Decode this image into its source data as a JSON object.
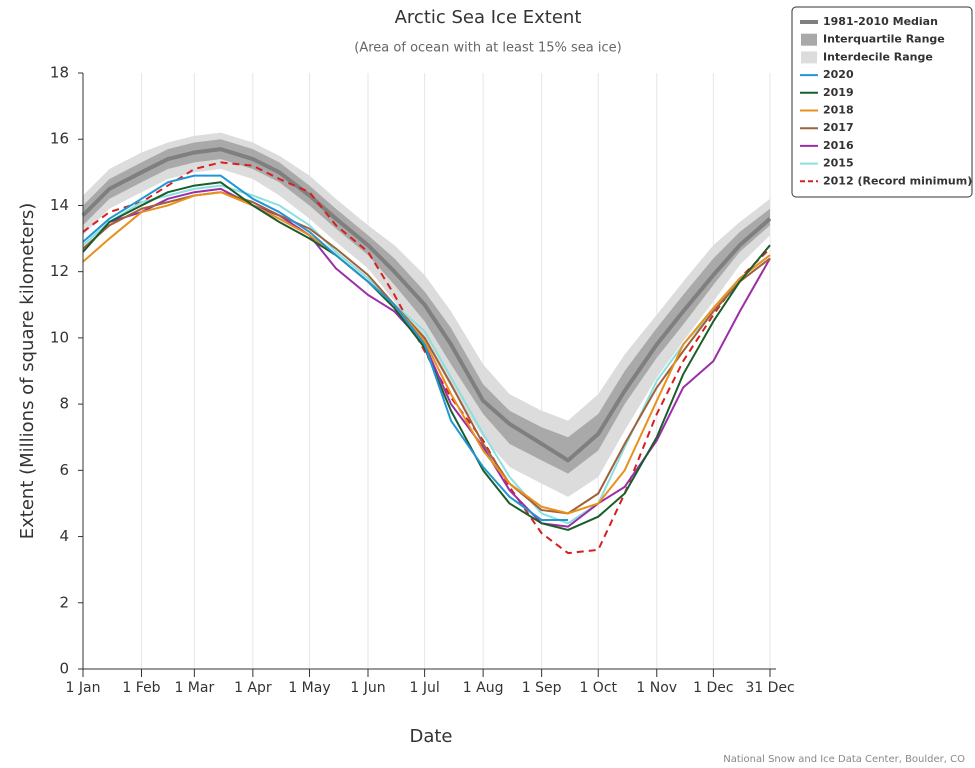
{
  "chart_data": {
    "type": "line",
    "title": "Arctic Sea Ice Extent",
    "subtitle": "(Area of ocean with at least 15% sea ice)",
    "y_label": "Extent (Millions of square kilometers)",
    "x_label": "Date",
    "credit": "National Snow and Ice Data Center, Boulder, CO",
    "xlim": [
      1,
      365
    ],
    "ylim": [
      0,
      18
    ],
    "xticks": [
      {
        "value": 1,
        "label": "1 Jan"
      },
      {
        "value": 32,
        "label": "1 Feb"
      },
      {
        "value": 60,
        "label": "1 Mar"
      },
      {
        "value": 91,
        "label": "1 Apr"
      },
      {
        "value": 121,
        "label": "1 May"
      },
      {
        "value": 152,
        "label": "1 Jun"
      },
      {
        "value": 182,
        "label": "1 Jul"
      },
      {
        "value": 213,
        "label": "1 Aug"
      },
      {
        "value": 244,
        "label": "1 Sep"
      },
      {
        "value": 274,
        "label": "1 Oct"
      },
      {
        "value": 305,
        "label": "1 Nov"
      },
      {
        "value": 335,
        "label": "1 Dec"
      },
      {
        "value": 365,
        "label": "31 Dec"
      }
    ],
    "yticks": [
      0,
      2,
      4,
      6,
      8,
      10,
      12,
      14,
      16,
      18
    ],
    "grid": "x",
    "x": [
      1,
      15,
      32,
      46,
      60,
      74,
      91,
      105,
      121,
      135,
      152,
      166,
      182,
      196,
      213,
      227,
      244,
      258,
      274,
      288,
      305,
      319,
      335,
      349,
      365
    ],
    "ranges": [
      {
        "name": "Interquartile Range",
        "color": "#a9a9a9",
        "low": [
          13.4,
          14.2,
          14.7,
          15.1,
          15.3,
          15.4,
          15.1,
          14.7,
          14.0,
          13.3,
          12.5,
          11.6,
          10.5,
          9.2,
          7.7,
          6.8,
          6.3,
          5.9,
          6.6,
          8.0,
          9.4,
          10.4,
          11.6,
          12.6,
          13.4
        ],
        "high": [
          14.0,
          14.8,
          15.3,
          15.7,
          15.9,
          16.0,
          15.7,
          15.3,
          14.6,
          13.9,
          13.1,
          12.4,
          11.4,
          10.3,
          8.6,
          7.8,
          7.3,
          7.0,
          7.7,
          9.0,
          10.3,
          11.3,
          12.4,
          13.2,
          13.9
        ]
      },
      {
        "name": "Interdecile Range",
        "color": "#dcdcdc",
        "low": [
          13.1,
          13.9,
          14.4,
          14.8,
          15.0,
          15.1,
          14.8,
          14.3,
          13.6,
          12.9,
          12.1,
          11.1,
          9.9,
          8.5,
          7.0,
          6.1,
          5.6,
          5.2,
          5.8,
          7.2,
          8.8,
          9.9,
          11.1,
          12.2,
          13.1
        ],
        "high": [
          14.3,
          15.1,
          15.6,
          15.9,
          16.1,
          16.2,
          15.9,
          15.5,
          14.9,
          14.2,
          13.4,
          12.8,
          11.9,
          10.8,
          9.2,
          8.3,
          7.8,
          7.5,
          8.3,
          9.5,
          10.7,
          11.7,
          12.8,
          13.5,
          14.2
        ]
      }
    ],
    "series": [
      {
        "name": "1981-2010 Median",
        "color": "#7f7f7f",
        "values": [
          13.7,
          14.5,
          15.0,
          15.4,
          15.6,
          15.7,
          15.4,
          15.0,
          14.3,
          13.6,
          12.8,
          12.0,
          11.0,
          9.8,
          8.1,
          7.4,
          6.8,
          6.3,
          7.1,
          8.4,
          9.8,
          10.8,
          11.9,
          12.8,
          13.6
        ]
      },
      {
        "name": "2020",
        "color": "#2196d6",
        "values": [
          12.9,
          13.6,
          14.2,
          14.7,
          14.9,
          14.9,
          14.2,
          13.8,
          13.2,
          12.5,
          11.7,
          11.0,
          9.8,
          7.5,
          6.1,
          5.2,
          4.5,
          4.5,
          null,
          null,
          null,
          null,
          null,
          null,
          null
        ]
      },
      {
        "name": "2019",
        "color": "#1b5e2b",
        "values": [
          12.6,
          13.5,
          14.0,
          14.4,
          14.6,
          14.7,
          14.0,
          13.5,
          13.0,
          12.5,
          11.7,
          10.9,
          9.7,
          7.8,
          6.0,
          5.0,
          4.4,
          4.2,
          4.6,
          5.3,
          7.0,
          8.9,
          10.5,
          11.7,
          12.8
        ]
      },
      {
        "name": "2018",
        "color": "#e8901c",
        "values": [
          12.3,
          13.0,
          13.8,
          14.0,
          14.3,
          14.4,
          14.0,
          13.6,
          13.1,
          12.5,
          11.7,
          11.0,
          9.9,
          8.3,
          6.6,
          5.6,
          4.9,
          4.7,
          5.0,
          6.0,
          8.1,
          9.8,
          10.9,
          11.8,
          12.5
        ]
      },
      {
        "name": "2017",
        "color": "#a0603a",
        "values": [
          12.7,
          13.4,
          13.9,
          14.1,
          14.3,
          14.4,
          14.1,
          13.7,
          13.3,
          12.7,
          11.9,
          11.0,
          10.0,
          8.6,
          6.8,
          5.6,
          4.8,
          4.7,
          5.3,
          6.8,
          8.5,
          9.6,
          10.8,
          11.7,
          12.4
        ]
      },
      {
        "name": "2016",
        "color": "#9b2ea8",
        "values": [
          12.6,
          13.5,
          13.8,
          14.2,
          14.4,
          14.5,
          14.0,
          13.7,
          13.1,
          12.1,
          11.3,
          10.8,
          9.8,
          8.0,
          6.7,
          5.4,
          4.4,
          4.3,
          5.0,
          5.5,
          6.9,
          8.5,
          9.3,
          10.8,
          12.4
        ]
      },
      {
        "name": "2015",
        "color": "#8ae0e0",
        "values": [
          12.8,
          13.5,
          14.1,
          14.3,
          14.5,
          14.6,
          14.3,
          14.0,
          13.4,
          12.6,
          11.8,
          11.0,
          10.2,
          8.8,
          7.1,
          5.8,
          4.7,
          4.4,
          5.0,
          6.7,
          8.7,
          9.8,
          10.8,
          11.8,
          12.5
        ]
      },
      {
        "name": "2012 (Record minimum)",
        "color": "#d62020",
        "dashed": true,
        "values": [
          13.2,
          13.8,
          14.1,
          14.6,
          15.1,
          15.3,
          15.2,
          14.8,
          14.4,
          13.4,
          12.6,
          11.3,
          9.6,
          8.2,
          6.9,
          5.5,
          4.1,
          3.5,
          3.6,
          5.3,
          7.7,
          9.3,
          10.7,
          11.8,
          12.7
        ]
      }
    ]
  }
}
